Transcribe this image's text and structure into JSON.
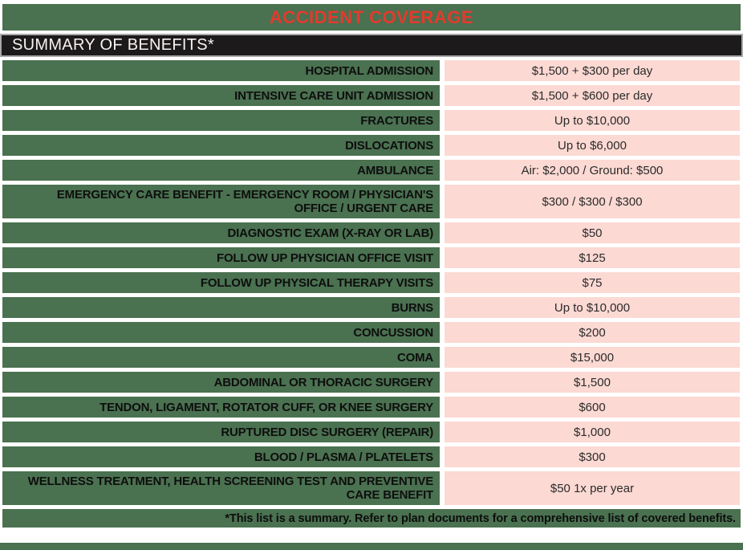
{
  "header": {
    "title": "ACCIDENT COVERAGE",
    "subtitle": "SUMMARY OF BENEFITS*"
  },
  "colors": {
    "green": "#4a7150",
    "pink": "#fcd9d3",
    "red": "#e43a2d",
    "black_row": "#1c1a1a"
  },
  "benefits": [
    {
      "label": "HOSPITAL ADMISSION",
      "value": "$1,500 + $300 per day"
    },
    {
      "label": "INTENSIVE CARE UNIT ADMISSION",
      "value": "$1,500 + $600 per day"
    },
    {
      "label": "FRACTURES",
      "value": "Up to $10,000"
    },
    {
      "label": "DISLOCATIONS",
      "value": "Up to $6,000"
    },
    {
      "label": "AMBULANCE",
      "value": "Air: $2,000 / Ground: $500"
    },
    {
      "label": "EMERGENCY CARE BENEFIT - EMERGENCY ROOM / PHYSICIAN'S OFFICE / URGENT CARE",
      "value": "$300 / $300 / $300"
    },
    {
      "label": "DIAGNOSTIC EXAM (X-RAY OR LAB)",
      "value": "$50"
    },
    {
      "label": "FOLLOW UP PHYSICIAN OFFICE VISIT",
      "value": "$125"
    },
    {
      "label": "FOLLOW UP PHYSICAL THERAPY VISITS",
      "value": "$75"
    },
    {
      "label": "BURNS",
      "value": "Up to $10,000"
    },
    {
      "label": "CONCUSSION",
      "value": "$200"
    },
    {
      "label": "COMA",
      "value": "$15,000"
    },
    {
      "label": "ABDOMINAL OR THORACIC SURGERY",
      "value": "$1,500"
    },
    {
      "label": "TENDON, LIGAMENT, ROTATOR CUFF, OR KNEE SURGERY",
      "value": "$600"
    },
    {
      "label": "RUPTURED DISC SURGERY (REPAIR)",
      "value": "$1,000"
    },
    {
      "label": "BLOOD / PLASMA / PLATELETS",
      "value": "$300"
    },
    {
      "label": "WELLNESS TREATMENT, HEALTH SCREENING TEST AND PREVENTIVE CARE BENEFIT",
      "value": "$50 1x per year"
    }
  ],
  "footer": {
    "note": "*This list is a summary. Refer to plan documents for a comprehensive list of covered benefits."
  }
}
